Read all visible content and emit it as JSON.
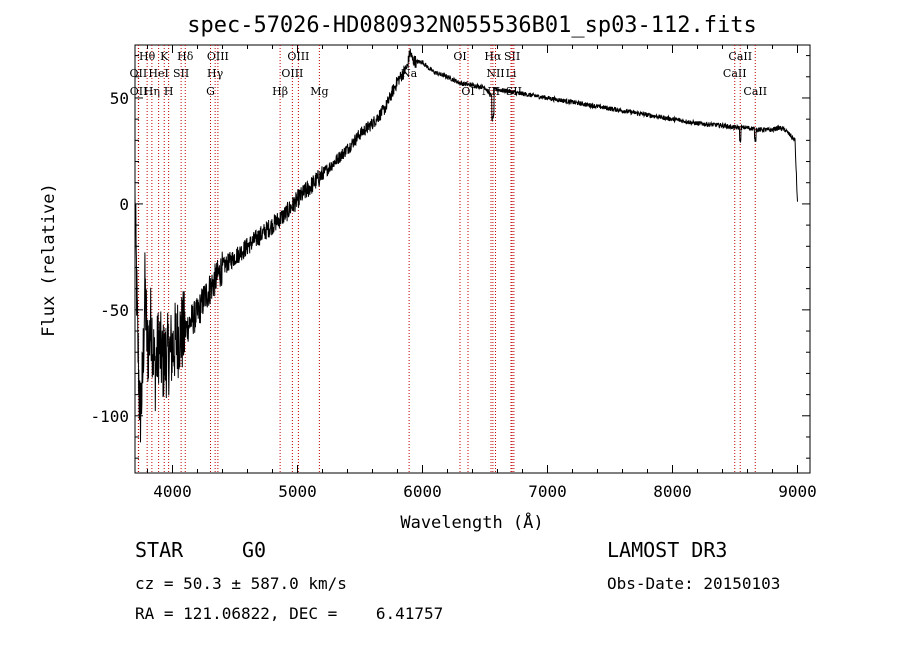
{
  "chart_data": {
    "type": "line",
    "title": "spec-57026-HD080932N055536B01_sp03-112.fits",
    "xlabel": "Wavelength (Å)",
    "ylabel": "Flux (relative)",
    "xlim": [
      3700,
      9100
    ],
    "ylim": [
      -127,
      75
    ],
    "xticks": [
      4000,
      5000,
      6000,
      7000,
      8000,
      9000
    ],
    "yticks": [
      -100,
      -50,
      0,
      50
    ],
    "series": [
      {
        "name": "spectrum",
        "x": [
          3700,
          3720,
          3740,
          3760,
          3780,
          3800,
          3830,
          3860,
          3890,
          3920,
          3950,
          3980,
          4000,
          4050,
          4100,
          4150,
          4200,
          4250,
          4300,
          4350,
          4400,
          4500,
          4600,
          4700,
          4800,
          4900,
          5000,
          5100,
          5200,
          5300,
          5400,
          5500,
          5600,
          5700,
          5800,
          5850,
          5880,
          5900,
          5920,
          5950,
          6000,
          6050,
          6100,
          6200,
          6300,
          6400,
          6500,
          6560,
          6580,
          6600,
          6700,
          6800,
          7000,
          7200,
          7400,
          7600,
          7800,
          8000,
          8200,
          8400,
          8500,
          8600,
          8700,
          8800,
          8850,
          8900,
          8980,
          9000
        ],
        "y": [
          0,
          -60,
          -100,
          -85,
          -40,
          -70,
          -55,
          -80,
          -65,
          -75,
          -72,
          -70,
          -68,
          -62,
          -60,
          -55,
          -52,
          -45,
          -40,
          -35,
          -30,
          -25,
          -20,
          -15,
          -10,
          -5,
          2,
          8,
          14,
          20,
          26,
          33,
          38,
          45,
          58,
          62,
          65,
          72,
          68,
          67,
          67,
          64,
          62,
          60,
          57,
          56,
          55,
          50,
          54,
          54,
          53,
          52,
          50,
          48,
          46,
          44,
          42,
          40,
          38,
          37,
          36,
          36,
          35,
          35,
          36,
          35,
          30,
          0
        ]
      }
    ],
    "spectral_lines": [
      {
        "label": "Hθ",
        "x": 3797,
        "row": 1
      },
      {
        "label": "OII",
        "x": 3727,
        "row": 2
      },
      {
        "label": "OII",
        "x": 3729,
        "row": 3
      },
      {
        "label": "Hη",
        "x": 3835,
        "row": 3
      },
      {
        "label": "HeI",
        "x": 3889,
        "row": 2
      },
      {
        "label": "K",
        "x": 3934,
        "row": 1
      },
      {
        "label": "SII",
        "x": 4069,
        "row": 2
      },
      {
        "label": "H",
        "x": 3969,
        "row": 3
      },
      {
        "label": "Hδ",
        "x": 4102,
        "row": 1
      },
      {
        "label": "OIII",
        "x": 4363,
        "row": 1
      },
      {
        "label": "Hγ",
        "x": 4341,
        "row": 2
      },
      {
        "label": "G",
        "x": 4304,
        "row": 3
      },
      {
        "label": "OIII",
        "x": 5007,
        "row": 1
      },
      {
        "label": "OIII",
        "x": 4959,
        "row": 2
      },
      {
        "label": "Hβ",
        "x": 4861,
        "row": 3
      },
      {
        "label": "Mg",
        "x": 5175,
        "row": 3
      },
      {
        "label": "Na",
        "x": 5893,
        "row": 2
      },
      {
        "label": "OI",
        "x": 6300,
        "row": 1
      },
      {
        "label": "OI",
        "x": 6364,
        "row": 3
      },
      {
        "label": "Hα",
        "x": 6563,
        "row": 1
      },
      {
        "label": "SII",
        "x": 6717,
        "row": 1
      },
      {
        "label": "NII",
        "x": 6584,
        "row": 2
      },
      {
        "label": "Li",
        "x": 6708,
        "row": 2
      },
      {
        "label": "NII",
        "x": 6548,
        "row": 3
      },
      {
        "label": "SII",
        "x": 6731,
        "row": 3
      },
      {
        "label": "CaII",
        "x": 8542,
        "row": 1
      },
      {
        "label": "CaII",
        "x": 8498,
        "row": 2
      },
      {
        "label": "CaII",
        "x": 8662,
        "row": 3
      }
    ]
  },
  "info": {
    "object_type": "STAR",
    "subclass": "G0",
    "survey": "LAMOST DR3",
    "cz": "cz = 50.3 ± 587.0 km/s",
    "obs_date": "Obs-Date: 20150103",
    "radec": "RA = 121.06822, DEC =    6.41757"
  },
  "colors": {
    "line_marker": "#c00000",
    "spectrum": "#000000"
  }
}
